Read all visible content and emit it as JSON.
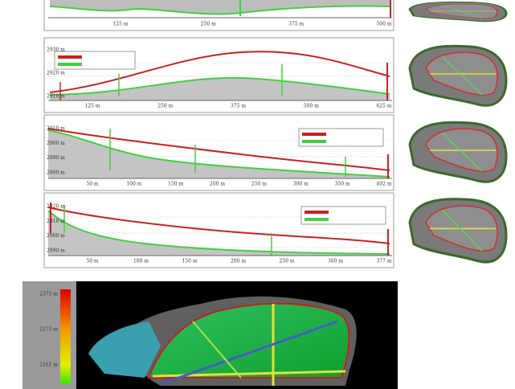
{
  "panels": [
    {
      "x_labels": [
        "125 m",
        "250 m",
        "375 m",
        "500 m"
      ]
    },
    {
      "x_labels": [
        "125 m",
        "250 m",
        "375 m",
        "500 m",
        "625 m"
      ],
      "y_labels": [
        "2930 m",
        "2920 m",
        "2910 m"
      ]
    },
    {
      "x_labels": [
        "50 m",
        "100 m",
        "150 m",
        "200 m",
        "250 m",
        "300 m",
        "350 m",
        "402 m"
      ],
      "y_labels": [
        "2910 m",
        "2900 m",
        "2890 m",
        "2880 m"
      ]
    },
    {
      "x_labels": [
        "50 m",
        "100 m",
        "150 m",
        "200 m",
        "250 m",
        "300 m",
        "377 m"
      ],
      "y_labels": [
        "2920 m",
        "2910 m",
        "2900 m",
        "2890 m"
      ]
    }
  ],
  "colorbar": {
    "labels": [
      "2375 m",
      "2273 m",
      "2161 m"
    ]
  }
}
